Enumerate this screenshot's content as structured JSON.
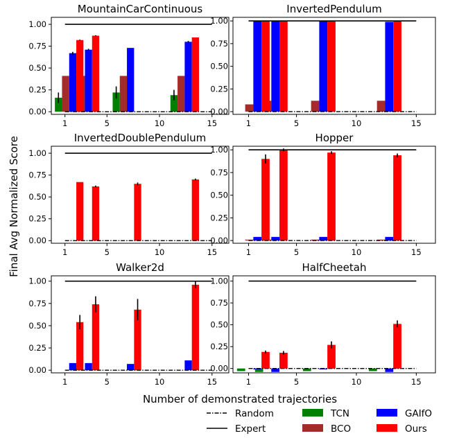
{
  "figure": {
    "ylabel": "Final Avg Normalized Score",
    "xlabel": "Number of demonstrated trajectories"
  },
  "legend": {
    "items": [
      {
        "label": "Random",
        "kind": "line",
        "style": "dashdot",
        "color": "#000000"
      },
      {
        "label": "Expert",
        "kind": "line",
        "style": "solid",
        "color": "#000000"
      },
      {
        "label": "TCN",
        "kind": "patch",
        "color": "#008000"
      },
      {
        "label": "BCO",
        "kind": "patch",
        "color": "#a52a2a"
      },
      {
        "label": "GAIfO",
        "kind": "patch",
        "color": "#0000ff"
      },
      {
        "label": "Ours",
        "kind": "patch",
        "color": "#ff0000"
      }
    ]
  },
  "chart_data": [
    {
      "type": "bar",
      "title": "MountainCarContinuous",
      "categories": [
        "1",
        "5",
        "10",
        "15"
      ],
      "yticks": [
        "0.00",
        "0.25",
        "0.50",
        "0.75",
        "1.00"
      ],
      "ylim": [
        -0.03,
        1.08
      ],
      "expert": 1.0,
      "random": 0.0,
      "series": [
        {
          "name": "TCN",
          "color": "#008000",
          "values": [
            0.16,
            0.23,
            0.22,
            0.19
          ],
          "errors": [
            0.06,
            0.06,
            0.07,
            0.06
          ]
        },
        {
          "name": "BCO",
          "color": "#a52a2a",
          "values": [
            0.41,
            0.41,
            0.41,
            0.41
          ],
          "errors": [
            0,
            0,
            0,
            0
          ]
        },
        {
          "name": "GAIfO",
          "color": "#0000ff",
          "values": [
            0.67,
            0.71,
            0.73,
            0.8
          ],
          "errors": [
            0.015,
            0.01,
            0,
            0.01
          ]
        },
        {
          "name": "Ours",
          "color": "#ff0000",
          "values": [
            0.82,
            0.87,
            0,
            0.85
          ],
          "errors": [
            0.005,
            0.005,
            0,
            0
          ]
        }
      ]
    },
    {
      "type": "bar",
      "title": "InvertedPendulum",
      "categories": [
        "1",
        "5",
        "10",
        "15"
      ],
      "yticks": [
        "0.00",
        "0.25",
        "0.50",
        "0.75",
        "1.00"
      ],
      "ylim": [
        -0.03,
        1.04
      ],
      "expert": 1.0,
      "random": 0.0,
      "series": [
        {
          "name": "TCN",
          "color": "#008000",
          "values": [
            0.0,
            0.01,
            0.0,
            0.0
          ],
          "errors": [
            0,
            0,
            0,
            0
          ]
        },
        {
          "name": "BCO",
          "color": "#a52a2a",
          "values": [
            0.08,
            0.12,
            0.12,
            0.12
          ],
          "errors": [
            0,
            0,
            0,
            0
          ]
        },
        {
          "name": "GAIfO",
          "color": "#0000ff",
          "values": [
            1.0,
            1.0,
            1.0,
            0.99
          ],
          "errors": [
            0,
            0,
            0,
            0
          ]
        },
        {
          "name": "Ours",
          "color": "#ff0000",
          "values": [
            1.0,
            1.0,
            1.0,
            1.0
          ],
          "errors": [
            0,
            0,
            0,
            0
          ]
        }
      ]
    },
    {
      "type": "bar",
      "title": "InvertedDoublePendulum",
      "categories": [
        "1",
        "5",
        "10",
        "15"
      ],
      "yticks": [
        "0.00",
        "0.25",
        "0.50",
        "0.75",
        "1.00"
      ],
      "ylim": [
        -0.03,
        1.08
      ],
      "expert": 1.0,
      "random": 0.0,
      "series": [
        {
          "name": "TCN",
          "color": "#008000",
          "values": [
            0.0,
            0.0,
            0.0,
            0.0
          ],
          "errors": [
            0,
            0,
            0,
            0
          ]
        },
        {
          "name": "BCO",
          "color": "#a52a2a",
          "values": [
            0.0,
            0.0,
            0.0,
            0.0
          ],
          "errors": [
            0,
            0,
            0,
            0
          ]
        },
        {
          "name": "GAIfO",
          "color": "#0000ff",
          "values": [
            0.0,
            0.0,
            0.0,
            0.0
          ],
          "errors": [
            0,
            0,
            0,
            0
          ]
        },
        {
          "name": "Ours",
          "color": "#ff0000",
          "values": [
            0.67,
            0.62,
            0.65,
            0.7
          ],
          "errors": [
            0,
            0.01,
            0.015,
            0.01
          ]
        }
      ]
    },
    {
      "type": "bar",
      "title": "Hopper",
      "categories": [
        "1",
        "5",
        "10",
        "15"
      ],
      "yticks": [
        "0.00",
        "0.25",
        "0.50",
        "0.75",
        "1.00"
      ],
      "ylim": [
        -0.03,
        1.04
      ],
      "expert": 1.0,
      "random": 0.0,
      "series": [
        {
          "name": "TCN",
          "color": "#008000",
          "values": [
            0.0,
            0.0,
            0.0,
            0.0
          ],
          "errors": [
            0,
            0,
            0,
            0
          ]
        },
        {
          "name": "BCO",
          "color": "#a52a2a",
          "values": [
            0.01,
            0.01,
            0.01,
            0.01
          ],
          "errors": [
            0,
            0,
            0,
            0
          ]
        },
        {
          "name": "GAIfO",
          "color": "#0000ff",
          "values": [
            0.04,
            0.04,
            0.04,
            0.04
          ],
          "errors": [
            0,
            0,
            0,
            0
          ]
        },
        {
          "name": "Ours",
          "color": "#ff0000",
          "values": [
            0.9,
            1.0,
            0.97,
            0.94
          ],
          "errors": [
            0.05,
            0.015,
            0.015,
            0.02
          ]
        }
      ]
    },
    {
      "type": "bar",
      "title": "Walker2d",
      "categories": [
        "1",
        "5",
        "10",
        "15"
      ],
      "yticks": [
        "0.00",
        "0.25",
        "0.50",
        "0.75",
        "1.00"
      ],
      "ylim": [
        -0.03,
        1.06
      ],
      "expert": 1.0,
      "random": 0.0,
      "series": [
        {
          "name": "TCN",
          "color": "#008000",
          "values": [
            0.0,
            0.0,
            0.0,
            0.0
          ],
          "errors": [
            0,
            0,
            0,
            0
          ]
        },
        {
          "name": "BCO",
          "color": "#a52a2a",
          "values": [
            0.0,
            0.0,
            0.0,
            0.0
          ],
          "errors": [
            0,
            0,
            0,
            0
          ]
        },
        {
          "name": "GAIfO",
          "color": "#0000ff",
          "values": [
            0.08,
            0.08,
            0.07,
            0.11
          ],
          "errors": [
            0,
            0,
            0,
            0
          ]
        },
        {
          "name": "Ours",
          "color": "#ff0000",
          "values": [
            0.54,
            0.74,
            0.68,
            0.96
          ],
          "errors": [
            0.08,
            0.09,
            0.12,
            0.04
          ]
        }
      ]
    },
    {
      "type": "bar",
      "title": "HalfCheetah",
      "categories": [
        "1",
        "5",
        "10",
        "15"
      ],
      "yticks": [
        "0.00",
        "0.25",
        "0.50",
        "0.75",
        "1.00"
      ],
      "ylim": [
        -0.05,
        1.06
      ],
      "expert": 1.0,
      "random": 0.0,
      "series": [
        {
          "name": "TCN",
          "color": "#008000",
          "values": [
            -0.03,
            -0.04,
            -0.03,
            -0.03
          ],
          "errors": [
            0,
            0,
            0,
            0
          ]
        },
        {
          "name": "BCO",
          "color": "#a52a2a",
          "values": [
            0.0,
            0.0,
            0.0,
            0.0
          ],
          "errors": [
            0,
            0,
            0,
            0
          ]
        },
        {
          "name": "GAIfO",
          "color": "#0000ff",
          "values": [
            -0.01,
            -0.04,
            -0.01,
            -0.04
          ],
          "errors": [
            0,
            0,
            0,
            0
          ]
        },
        {
          "name": "Ours",
          "color": "#ff0000",
          "values": [
            0.19,
            0.18,
            0.27,
            0.51
          ],
          "errors": [
            0.015,
            0.02,
            0.04,
            0.04
          ]
        }
      ]
    }
  ]
}
